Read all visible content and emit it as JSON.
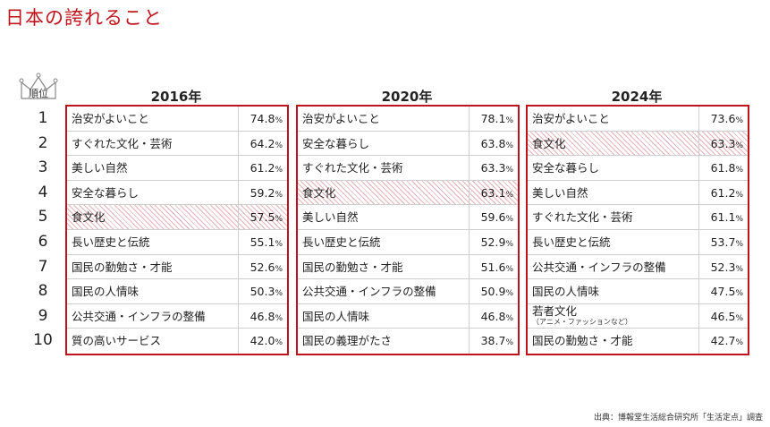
{
  "title": "日本の誇れること",
  "rank_header": "順位",
  "ranks": [
    "1",
    "2",
    "3",
    "4",
    "5",
    "6",
    "7",
    "8",
    "9",
    "10"
  ],
  "unit": "%",
  "tables": [
    {
      "year": "2016年",
      "rows": [
        {
          "item": "治安がよいこと",
          "value": "74.8",
          "highlight": false
        },
        {
          "item": "すぐれた文化・芸術",
          "value": "64.2",
          "highlight": false
        },
        {
          "item": "美しい自然",
          "value": "61.2",
          "highlight": false
        },
        {
          "item": "安全な暮らし",
          "value": "59.2",
          "highlight": false
        },
        {
          "item": "食文化",
          "value": "57.5",
          "highlight": true
        },
        {
          "item": "長い歴史と伝統",
          "value": "55.1",
          "highlight": false
        },
        {
          "item": "国民の勤勉さ・才能",
          "value": "52.6",
          "highlight": false
        },
        {
          "item": "国民の人情味",
          "value": "50.3",
          "highlight": false
        },
        {
          "item": "公共交通・インフラの整備",
          "value": "46.8",
          "highlight": false
        },
        {
          "item": "質の高いサービス",
          "value": "42.0",
          "highlight": false
        }
      ]
    },
    {
      "year": "2020年",
      "rows": [
        {
          "item": "治安がよいこと",
          "value": "78.1",
          "highlight": false
        },
        {
          "item": "安全な暮らし",
          "value": "63.8",
          "highlight": false
        },
        {
          "item": "すぐれた文化・芸術",
          "value": "63.3",
          "highlight": false
        },
        {
          "item": "食文化",
          "value": "63.1",
          "highlight": true
        },
        {
          "item": "美しい自然",
          "value": "59.6",
          "highlight": false
        },
        {
          "item": "長い歴史と伝統",
          "value": "52.9",
          "highlight": false
        },
        {
          "item": "国民の勤勉さ・才能",
          "value": "51.6",
          "highlight": false
        },
        {
          "item": "公共交通・インフラの整備",
          "value": "50.9",
          "highlight": false
        },
        {
          "item": "国民の人情味",
          "value": "46.8",
          "highlight": false
        },
        {
          "item": "国民の義理がたさ",
          "value": "38.7",
          "highlight": false
        }
      ]
    },
    {
      "year": "2024年",
      "rows": [
        {
          "item": "治安がよいこと",
          "value": "73.6",
          "highlight": false
        },
        {
          "item": "食文化",
          "value": "63.3",
          "highlight": true
        },
        {
          "item": "安全な暮らし",
          "value": "61.8",
          "highlight": false
        },
        {
          "item": "美しい自然",
          "value": "61.2",
          "highlight": false
        },
        {
          "item": "すぐれた文化・芸術",
          "value": "61.1",
          "highlight": false
        },
        {
          "item": "長い歴史と伝統",
          "value": "53.7",
          "highlight": false
        },
        {
          "item": "公共交通・インフラの整備",
          "value": "52.3",
          "highlight": false
        },
        {
          "item": "国民の人情味",
          "value": "47.5",
          "highlight": false
        },
        {
          "item": "若者文化",
          "sub": "（アニメ・ファッションなど）",
          "value": "46.5",
          "highlight": false
        },
        {
          "item": "国民の勤勉さ・才能",
          "value": "42.7",
          "highlight": false
        }
      ]
    }
  ],
  "source": "出典：博報堂生活総合研究所「生活定点」調査"
}
